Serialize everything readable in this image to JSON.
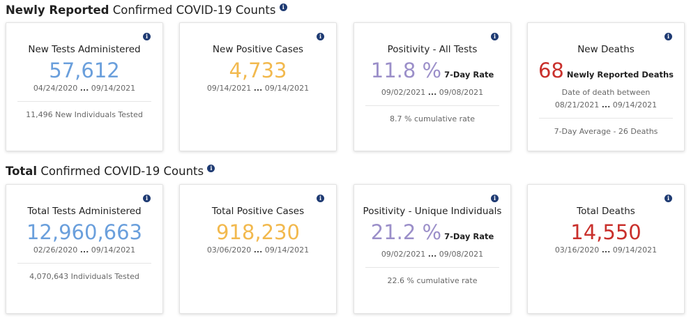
{
  "colors": {
    "tests": "#6a9fdc",
    "cases": "#f2b94e",
    "positivity": "#9b8fc9",
    "deaths": "#c9302c",
    "info": "#1f3b73"
  },
  "sections": [
    {
      "title_bold": "Newly Reported",
      "title_rest": " Confirmed COVID-19 Counts",
      "icon": "info-icon",
      "cards": [
        {
          "title": "New Tests Administered",
          "value": "57,612",
          "suffix": "",
          "pre_date": "",
          "date_start": "04/24/2020",
          "ellipsis": "...",
          "date_end": "09/14/2021",
          "footer": "11,496 New Individuals Tested"
        },
        {
          "title": "New Positive Cases",
          "value": "4,733",
          "suffix": "",
          "pre_date": "",
          "date_start": "09/14/2021",
          "ellipsis": "...",
          "date_end": "09/14/2021",
          "footer": ""
        },
        {
          "title": "Positivity - All Tests",
          "value": "11.8 %",
          "suffix": "7-Day Rate",
          "pre_date": "",
          "date_start": "09/02/2021",
          "ellipsis": "...",
          "date_end": "09/08/2021",
          "footer": "8.7 % cumulative rate"
        },
        {
          "title": "New Deaths",
          "value": "68",
          "suffix": "Newly Reported Deaths",
          "pre_date": "Date of death between",
          "date_start": "08/21/2021",
          "ellipsis": "...",
          "date_end": "09/14/2021",
          "footer": "7-Day Average - 26 Deaths"
        }
      ]
    },
    {
      "title_bold": "Total",
      "title_rest": " Confirmed COVID-19 Counts",
      "icon": "info-icon",
      "cards": [
        {
          "title": "Total Tests Administered",
          "value": "12,960,663",
          "suffix": "",
          "pre_date": "",
          "date_start": "02/26/2020",
          "ellipsis": "...",
          "date_end": "09/14/2021",
          "footer": "4,070,643 Individuals Tested"
        },
        {
          "title": "Total Positive Cases",
          "value": "918,230",
          "suffix": "",
          "pre_date": "",
          "date_start": "03/06/2020",
          "ellipsis": "...",
          "date_end": "09/14/2021",
          "footer": ""
        },
        {
          "title": "Positivity - Unique Individuals",
          "value": "21.2 %",
          "suffix": "7-Day Rate",
          "pre_date": "",
          "date_start": "09/02/2021",
          "ellipsis": "...",
          "date_end": "09/08/2021",
          "footer": "22.6 % cumulative rate"
        },
        {
          "title": "Total Deaths",
          "value": "14,550",
          "suffix": "",
          "pre_date": "",
          "date_start": "03/16/2020",
          "ellipsis": "...",
          "date_end": "09/14/2021",
          "footer": ""
        }
      ]
    }
  ]
}
